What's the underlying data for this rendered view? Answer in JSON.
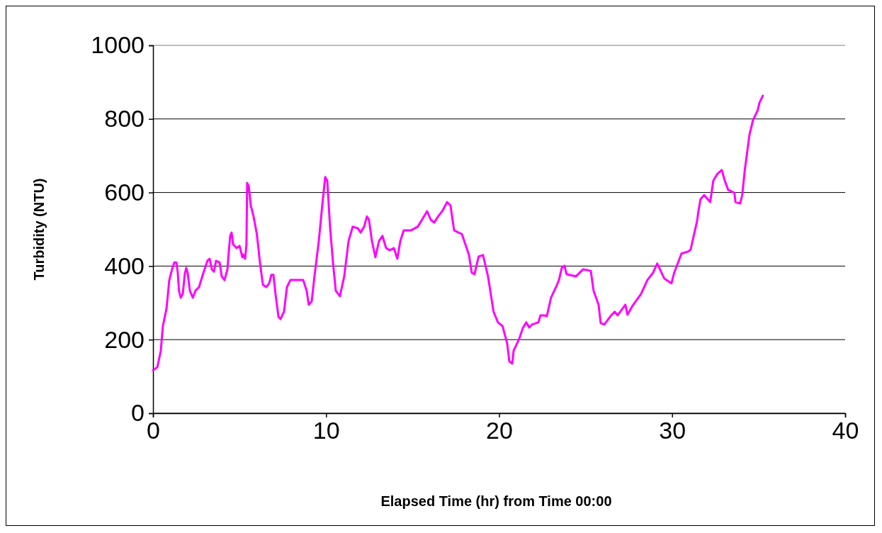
{
  "chart_data": {
    "type": "line",
    "xlabel": "Elapsed Time (hr) from Time 00:00",
    "ylabel": "Turbidity (NTU)",
    "xlim": [
      0,
      40
    ],
    "xticks": [
      0,
      10,
      20,
      30,
      40
    ],
    "ylim": [
      0,
      1000
    ],
    "yticks": [
      0,
      200,
      400,
      600,
      800,
      1000
    ],
    "grid": "y",
    "marker": "none",
    "line_style": "solid",
    "series": [
      {
        "color": "#ff00ff",
        "x": [
          0,
          0.25,
          0.45,
          0.57,
          0.78,
          0.94,
          1.1,
          1.23,
          1.35,
          1.43,
          1.5,
          1.6,
          1.72,
          1.84,
          1.92,
          2.0,
          2.13,
          2.3,
          2.45,
          2.66,
          2.9,
          3.15,
          3.27,
          3.4,
          3.52,
          3.64,
          3.85,
          3.97,
          4.13,
          4.3,
          4.38,
          4.46,
          4.54,
          4.63,
          4.83,
          5.0,
          5.16,
          5.2,
          5.32,
          5.4,
          5.44,
          5.53,
          5.65,
          5.81,
          6.0,
          6.18,
          6.35,
          6.55,
          6.71,
          6.84,
          6.96,
          7.08,
          7.25,
          7.37,
          7.57,
          7.74,
          7.94,
          8.35,
          8.68,
          8.88,
          9.0,
          9.17,
          9.33,
          9.58,
          9.78,
          9.95,
          10.07,
          10.23,
          10.4,
          10.56,
          10.8,
          11.05,
          11.3,
          11.54,
          11.83,
          12.0,
          12.2,
          12.36,
          12.48,
          12.65,
          12.85,
          13.06,
          13.26,
          13.47,
          13.67,
          13.92,
          14.12,
          14.29,
          14.49,
          14.9,
          15.3,
          15.84,
          16.05,
          16.25,
          16.46,
          16.74,
          16.99,
          17.19,
          17.4,
          17.85,
          18.26,
          18.42,
          18.58,
          18.82,
          19.07,
          19.36,
          19.68,
          19.93,
          20.2,
          20.47,
          20.59,
          20.76,
          20.84,
          21.16,
          21.37,
          21.57,
          21.74,
          21.9,
          22.27,
          22.39,
          22.6,
          22.76,
          23.0,
          23.29,
          23.46,
          23.62,
          23.78,
          23.9,
          24.44,
          24.85,
          25.3,
          25.46,
          25.75,
          25.87,
          26.08,
          26.48,
          26.68,
          26.85,
          27.3,
          27.42,
          27.7,
          28.2,
          28.57,
          28.9,
          29.14,
          29.3,
          29.55,
          29.96,
          30.12,
          30.54,
          30.95,
          31.07,
          31.3,
          31.44,
          31.52,
          31.64,
          31.85,
          32.2,
          32.38,
          32.62,
          32.87,
          33.03,
          33.24,
          33.6,
          33.66,
          33.93,
          34.05,
          34.2,
          34.47,
          34.67,
          34.95,
          35.04,
          35.24
        ],
        "values": [
          117,
          125,
          170,
          237,
          285,
          362,
          391,
          410,
          410,
          382,
          333,
          314,
          324,
          380,
          395,
          382,
          333,
          314,
          333,
          343,
          380,
          415,
          420,
          391,
          385,
          414,
          410,
          372,
          362,
          391,
          440,
          482,
          491,
          459,
          449,
          455,
          424,
          432,
          420,
          459,
          626,
          618,
          565,
          535,
          487,
          410,
          349,
          343,
          353,
          376,
          376,
          324,
          262,
          256,
          276,
          343,
          362,
          362,
          362,
          333,
          295,
          304,
          372,
          468,
          565,
          642,
          632,
          507,
          410,
          333,
          318,
          372,
          468,
          507,
          503,
          491,
          507,
          535,
          526,
          468,
          424,
          468,
          482,
          449,
          443,
          449,
          420,
          468,
          497,
          497,
          507,
          549,
          526,
          518,
          534,
          551,
          574,
          565,
          497,
          487,
          430,
          382,
          378,
          426,
          430,
          372,
          276,
          247,
          237,
          189,
          141,
          135,
          170,
          202,
          231,
          247,
          233,
          241,
          247,
          266,
          266,
          264,
          314,
          343,
          362,
          395,
          401,
          378,
          372,
          391,
          387,
          333,
          295,
          245,
          241,
          266,
          276,
          266,
          295,
          268,
          291,
          324,
          362,
          382,
          407,
          391,
          366,
          353,
          382,
          434,
          440,
          445,
          493,
          522,
          549,
          582,
          593,
          574,
          632,
          651,
          661,
          634,
          607,
          599,
          574,
          570,
          593,
          661,
          757,
          796,
          824,
          843,
          863
        ]
      }
    ]
  }
}
